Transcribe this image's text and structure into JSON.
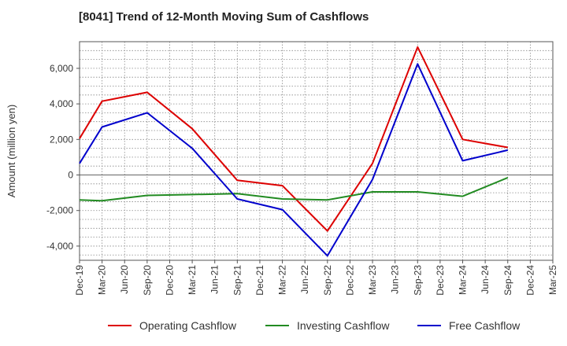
{
  "chart_data": {
    "type": "line",
    "title": "[8041]  Trend of 12-Month Moving Sum of Cashflows",
    "xlabel": "",
    "ylabel": "Amount (million yen)",
    "ylim": [
      -4800,
      7500
    ],
    "yticks": [
      -4000,
      -2000,
      0,
      2000,
      4000,
      6000
    ],
    "ytick_labels": [
      "-4,000",
      "-2,000",
      "0",
      "2,000",
      "4,000",
      "6,000"
    ],
    "categories": [
      "Dec-19",
      "Mar-20",
      "Jun-20",
      "Sep-20",
      "Dec-20",
      "Mar-21",
      "Jun-21",
      "Sep-21",
      "Dec-21",
      "Mar-22",
      "Jun-22",
      "Sep-22",
      "Dec-22",
      "Mar-23",
      "Jun-23",
      "Sep-23",
      "Dec-23",
      "Mar-24",
      "Jun-24",
      "Sep-24",
      "Dec-24",
      "Mar-25"
    ],
    "xtick_labels": [
      "Dec-19",
      "Mar-20",
      "Jun-20",
      "Sep-20",
      "Dec-20",
      "Mar-21",
      "Jun-21",
      "Sep-21",
      "Dec-21",
      "Mar-22",
      "Jun-22",
      "Sep-22",
      "Dec-22",
      "Mar-23",
      "Jun-23",
      "Sep-23",
      "Dec-23",
      "Mar-24",
      "Jun-24",
      "Sep-24",
      "Dec-24",
      "Mar-25"
    ],
    "grid": true,
    "legend_position": "bottom",
    "series": [
      {
        "name": "Operating Cashflow",
        "color": "#dd0000",
        "points": [
          [
            "Dec-19",
            2050
          ],
          [
            "Mar-20",
            4150
          ],
          [
            "Sep-20",
            4650
          ],
          [
            "Mar-21",
            2600
          ],
          [
            "Sep-21",
            -300
          ],
          [
            "Mar-22",
            -600
          ],
          [
            "Sep-22",
            -3150
          ],
          [
            "Mar-23",
            650
          ],
          [
            "Sep-23",
            7200
          ],
          [
            "Mar-24",
            2000
          ],
          [
            "Sep-24",
            1550
          ]
        ]
      },
      {
        "name": "Investing Cashflow",
        "color": "#228b22",
        "points": [
          [
            "Dec-19",
            -1400
          ],
          [
            "Mar-20",
            -1450
          ],
          [
            "Sep-20",
            -1150
          ],
          [
            "Mar-21",
            -1100
          ],
          [
            "Sep-21",
            -1050
          ],
          [
            "Mar-22",
            -1350
          ],
          [
            "Sep-22",
            -1400
          ],
          [
            "Mar-23",
            -950
          ],
          [
            "Sep-23",
            -950
          ],
          [
            "Mar-24",
            -1200
          ],
          [
            "Sep-24",
            -150
          ]
        ]
      },
      {
        "name": "Free Cashflow",
        "color": "#0000cc",
        "points": [
          [
            "Dec-19",
            650
          ],
          [
            "Mar-20",
            2700
          ],
          [
            "Sep-20",
            3500
          ],
          [
            "Mar-21",
            1500
          ],
          [
            "Sep-21",
            -1350
          ],
          [
            "Mar-22",
            -1950
          ],
          [
            "Sep-22",
            -4550
          ],
          [
            "Mar-23",
            -250
          ],
          [
            "Sep-23",
            6250
          ],
          [
            "Mar-24",
            800
          ],
          [
            "Sep-24",
            1400
          ]
        ]
      }
    ]
  }
}
